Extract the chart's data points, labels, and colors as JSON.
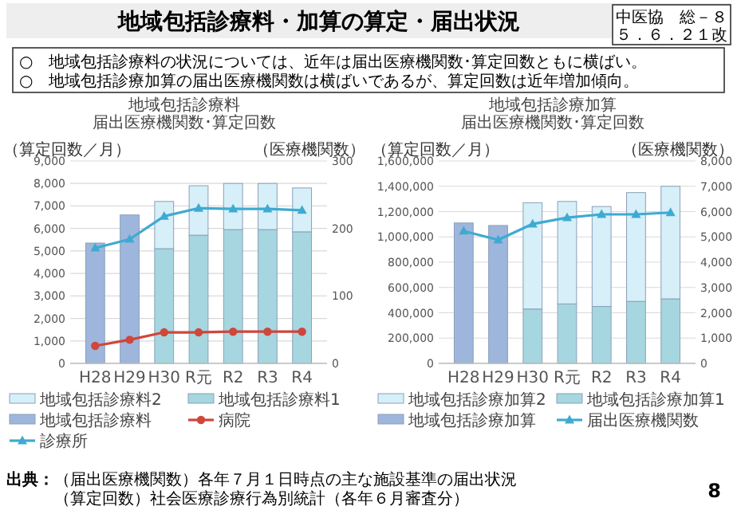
{
  "chart_data": [
    {
      "type": "other",
      "title": "地域包括診療料・加算の算定・届出状況",
      "annotations": [
        "中医協　総－８",
        "５．６．２１改",
        "○　地域包括診療料の状況については、近年は届出医療機関数･算定回数ともに横ばい。",
        "○　地域包括診療加算の届出医療機関数は横ばいであるが、算定回数は近年増加傾向。"
      ]
    },
    {
      "type": "bar",
      "title": "地域包括診療料",
      "subtitle": "届出医療機関数･算定回数",
      "ylabel": "（算定回数／月）",
      "y2label": "（医療機関数）",
      "categories": [
        "H28",
        "H29",
        "H30",
        "R元",
        "R2",
        "R3",
        "R4"
      ],
      "stacked": true,
      "grid": "y",
      "legend": "bottom",
      "ylim": [
        0,
        9000
      ],
      "yticks": [
        0,
        {
          "value": 1000,
          "label": "1,000"
        },
        {
          "value": 2000,
          "label": "2,000"
        },
        {
          "value": 3000,
          "label": "3,000"
        },
        {
          "value": 4000,
          "label": "4,000"
        },
        {
          "value": 5000,
          "label": "5,000"
        },
        {
          "value": 6000,
          "label": "6,000"
        },
        {
          "value": 7000,
          "label": "7,000"
        },
        {
          "value": 8000,
          "label": "8,000"
        },
        {
          "value": 9000,
          "label": "9,000"
        }
      ],
      "y2lim": [
        0,
        300
      ],
      "y2ticks": [
        0,
        100,
        200,
        300
      ],
      "series": [
        {
          "name": "地域包括診療料",
          "color": "#9fb6dc",
          "values": [
            5350,
            6600,
            null,
            null,
            null,
            null,
            null
          ]
        },
        {
          "name": "地域包括診療料1",
          "color": "#a6d6df",
          "values": [
            null,
            null,
            5100,
            5700,
            5950,
            5950,
            5850
          ]
        },
        {
          "name": "地域包括診療料2",
          "color": "#d6eff8",
          "values": [
            null,
            null,
            2100,
            2200,
            2050,
            2050,
            1950
          ]
        },
        {
          "name": "病院",
          "type": "line",
          "axis": "y2",
          "marker": "circle",
          "color": "#d0463a",
          "values": [
            26,
            35,
            46,
            46,
            47,
            47,
            47
          ]
        },
        {
          "name": "診療所",
          "type": "line",
          "axis": "y2",
          "marker": "triangle",
          "color": "#3eaad2",
          "values": [
            171,
            184,
            218,
            230,
            229,
            229,
            227
          ]
        }
      ]
    },
    {
      "type": "bar",
      "title": "地域包括診療加算",
      "subtitle": "届出医療機関数･算定回数",
      "ylabel": "（算定回数／月）",
      "y2label": "（医療機関数）",
      "categories": [
        "H28",
        "H29",
        "H30",
        "R元",
        "R2",
        "R3",
        "R4"
      ],
      "stacked": true,
      "grid": "y",
      "legend": "bottom",
      "ylim": [
        0,
        1600000
      ],
      "yticks": [
        0,
        {
          "value": 200000,
          "label": "200,000"
        },
        {
          "value": 400000,
          "label": "400,000"
        },
        {
          "value": 600000,
          "label": "600,000"
        },
        {
          "value": 800000,
          "label": "800,000"
        },
        {
          "value": 1000000,
          "label": "1,000,000"
        },
        {
          "value": 1200000,
          "label": "1,200,000"
        },
        {
          "value": 1400000,
          "label": "1,400,000"
        },
        {
          "value": 1600000,
          "label": "1,600,000"
        }
      ],
      "y2lim": [
        0,
        8000
      ],
      "y2ticks": [
        0,
        {
          "value": 1000,
          "label": "1,000"
        },
        {
          "value": 2000,
          "label": "2,000"
        },
        {
          "value": 3000,
          "label": "3,000"
        },
        {
          "value": 4000,
          "label": "4,000"
        },
        {
          "value": 5000,
          "label": "5,000"
        },
        {
          "value": 6000,
          "label": "6,000"
        },
        {
          "value": 7000,
          "label": "7,000"
        },
        {
          "value": 8000,
          "label": "8,000"
        }
      ],
      "series": [
        {
          "name": "地域包括診療加算",
          "color": "#9fb6dc",
          "values": [
            1110000,
            1090000,
            null,
            null,
            null,
            null,
            null
          ]
        },
        {
          "name": "地域包括診療加算1",
          "color": "#a6d6df",
          "values": [
            null,
            null,
            430000,
            470000,
            450000,
            490000,
            510000
          ]
        },
        {
          "name": "地域包括診療加算2",
          "color": "#d6eff8",
          "values": [
            null,
            null,
            840000,
            810000,
            790000,
            860000,
            890000
          ]
        },
        {
          "name": "届出医療機関数",
          "type": "line",
          "axis": "y2",
          "marker": "triangle",
          "color": "#3eaad2",
          "values": [
            5230,
            4880,
            5510,
            5760,
            5890,
            5890,
            5960
          ]
        }
      ]
    },
    {
      "type": "other",
      "annotations": [
        "出典：",
        "（届出医療機関数）各年７月１日時点の主な施設基準の届出状況",
        "（算定回数）社会医療診療行為別統計（各年６月審査分）",
        "8"
      ]
    }
  ]
}
